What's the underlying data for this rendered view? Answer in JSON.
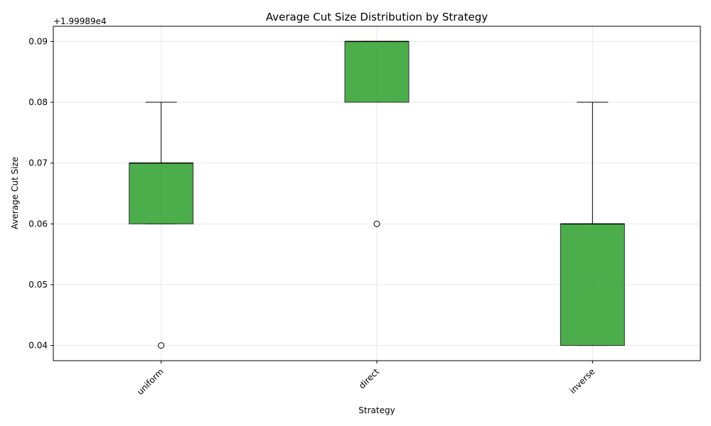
{
  "chart_data": {
    "type": "box",
    "title": "Average Cut Size Distribution by Strategy",
    "xlabel": "Strategy",
    "ylabel": "Average Cut Size",
    "offset_text": "+1.99989e4",
    "categories": [
      "uniform",
      "direct",
      "inverse"
    ],
    "boxes": [
      {
        "name": "uniform",
        "whisker_low": 0.06,
        "q1": 0.06,
        "median": 0.07,
        "q3": 0.07,
        "whisker_high": 0.08,
        "outliers": [
          0.04
        ]
      },
      {
        "name": "direct",
        "whisker_low": 0.08,
        "q1": 0.08,
        "median": 0.09,
        "q3": 0.09,
        "whisker_high": 0.09,
        "outliers": [
          0.06
        ]
      },
      {
        "name": "inverse",
        "whisker_low": 0.04,
        "q1": 0.04,
        "median": 0.06,
        "q3": 0.06,
        "whisker_high": 0.08,
        "outliers": []
      }
    ],
    "yticks": [
      0.04,
      0.05,
      0.06,
      0.07,
      0.08,
      0.09
    ],
    "ytick_labels": [
      "0.04",
      "0.05",
      "0.06",
      "0.07",
      "0.08",
      "0.09"
    ],
    "ylim": [
      0.0375,
      0.0925
    ],
    "grid": true,
    "box_color": "#2ca02c",
    "xtick_rotation": 45
  }
}
